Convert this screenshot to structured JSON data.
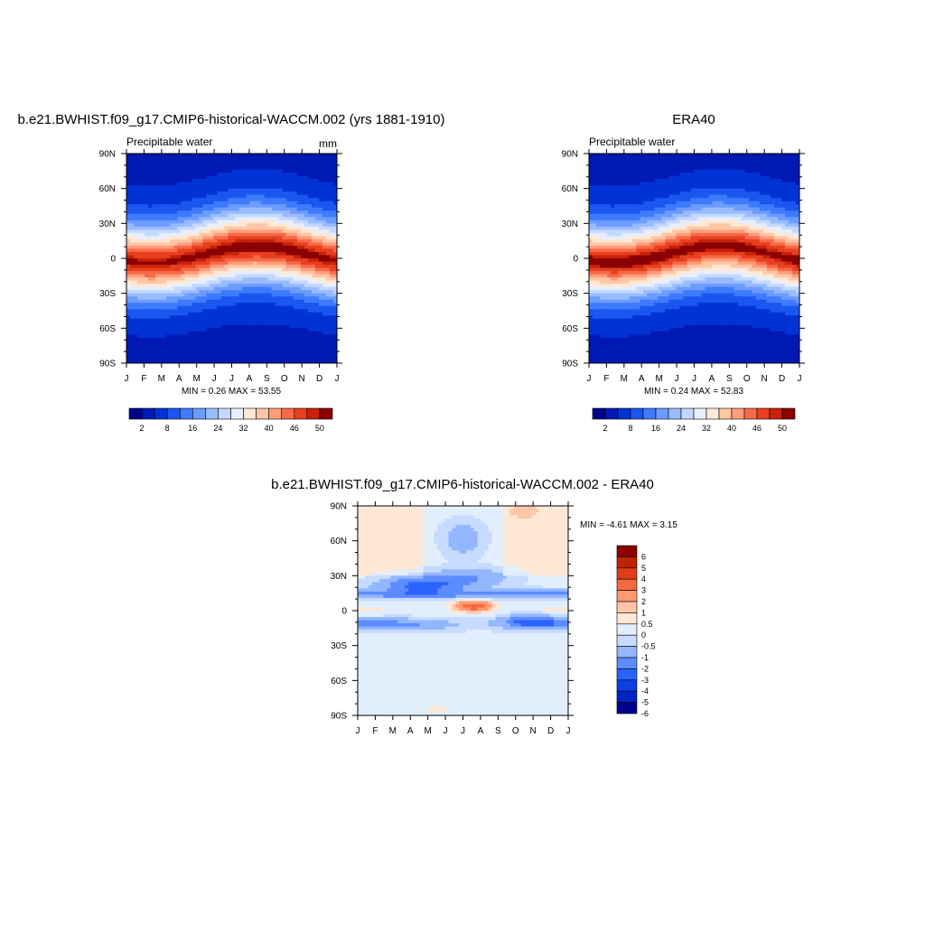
{
  "chart_data": [
    {
      "type": "heatmap",
      "title": "b.e21.BWHIST.f09_g17.CMIP6-historical-WACCM.002 (yrs 1881-1910)",
      "subtitle": "Precipitable water",
      "units": "mm",
      "x_tick_labels": [
        "J",
        "F",
        "M",
        "A",
        "M",
        "J",
        "J",
        "A",
        "S",
        "O",
        "N",
        "D",
        "J"
      ],
      "y_tick_labels": [
        "90N",
        "60N",
        "30N",
        "0",
        "30S",
        "60S",
        "90S"
      ],
      "y_values": [
        90,
        60,
        30,
        0,
        -30,
        -60,
        -90
      ],
      "xlim": [
        0,
        12
      ],
      "ylim": [
        -90,
        90
      ],
      "field": "mean",
      "stats_text": "MIN =   0.26 MAX =  53.55",
      "min": 0.26,
      "max": 53.55,
      "colorbar": {
        "orientation": "horizontal",
        "levels": [
          2,
          4,
          8,
          12,
          16,
          20,
          24,
          28,
          32,
          36,
          40,
          43,
          46,
          49,
          50
        ],
        "labels": [
          "2",
          "8",
          "16",
          "24",
          "32",
          "40",
          "46",
          "50"
        ],
        "colors": [
          "#00008b",
          "#0019b4",
          "#0033d6",
          "#1a57f0",
          "#3f7bff",
          "#6c9cff",
          "#99bbff",
          "#c4d8ff",
          "#e6efff",
          "#ffe8d4",
          "#ffc6a6",
          "#ff9c7a",
          "#f76a49",
          "#e8401f",
          "#c9220a",
          "#8b0000"
        ]
      }
    },
    {
      "type": "heatmap",
      "title": "ERA40",
      "subtitle": "Precipitable water",
      "x_tick_labels": [
        "J",
        "F",
        "M",
        "A",
        "M",
        "J",
        "J",
        "A",
        "S",
        "O",
        "N",
        "D",
        "J"
      ],
      "y_tick_labels": [
        "90N",
        "60N",
        "30N",
        "0",
        "30S",
        "60S",
        "90S"
      ],
      "y_values": [
        90,
        60,
        30,
        0,
        -30,
        -60,
        -90
      ],
      "xlim": [
        0,
        12
      ],
      "ylim": [
        -90,
        90
      ],
      "field": "mean",
      "stats_text": "MIN =   0.24 MAX =  52.83",
      "min": 0.24,
      "max": 52.83,
      "colorbar": {
        "orientation": "horizontal",
        "labels": [
          "2",
          "8",
          "16",
          "24",
          "32",
          "40",
          "46",
          "50"
        ]
      }
    },
    {
      "type": "heatmap",
      "title": "b.e21.BWHIST.f09_g17.CMIP6-historical-WACCM.002 - ERA40",
      "x_tick_labels": [
        "J",
        "F",
        "M",
        "A",
        "M",
        "J",
        "J",
        "A",
        "S",
        "O",
        "N",
        "D",
        "J"
      ],
      "y_tick_labels": [
        "90N",
        "60N",
        "30N",
        "0",
        "30S",
        "60S",
        "90S"
      ],
      "y_values": [
        90,
        60,
        30,
        0,
        -30,
        -60,
        -90
      ],
      "xlim": [
        0,
        12
      ],
      "ylim": [
        -90,
        90
      ],
      "field": "difference",
      "stats_text": "MIN =  -4.61 MAX =   3.15",
      "min": -4.61,
      "max": 3.15,
      "colorbar": {
        "orientation": "vertical",
        "levels": [
          -6,
          -5,
          -4,
          -3,
          -2,
          -1,
          -0.5,
          0,
          0.5,
          1,
          2,
          3,
          4,
          5,
          6
        ],
        "labels": [
          "6",
          "5",
          "4",
          "3",
          "2",
          "1",
          "0.5",
          "0",
          "-0.5",
          "-1",
          "-2",
          "-3",
          "-4",
          "-5",
          "-6"
        ],
        "colors": [
          "#00008b",
          "#0022c4",
          "#0a3fe6",
          "#2a63ff",
          "#5c8cff",
          "#93b6ff",
          "#c6dbff",
          "#e2eefc",
          "#fde8d6",
          "#ffc6aa",
          "#ff9a70",
          "#f46a40",
          "#e03c18",
          "#c02204",
          "#8b0000"
        ]
      }
    }
  ]
}
